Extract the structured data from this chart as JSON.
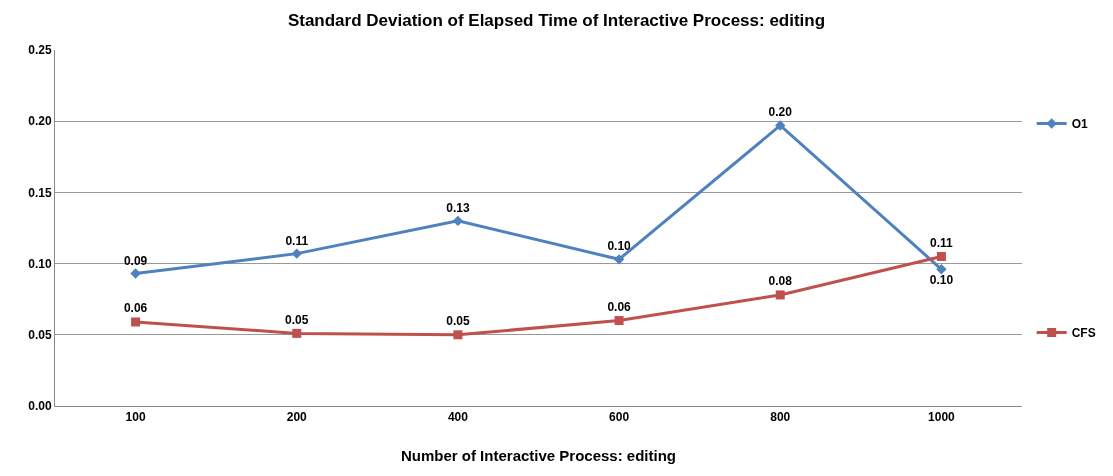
{
  "chart_data": {
    "type": "line",
    "title": "Standard Deviation of Elapsed Time of Interactive Process: editing",
    "xlabel": "Number of Interactive Process: editing",
    "categories": [
      "100",
      "200",
      "400",
      "600",
      "800",
      "1000"
    ],
    "series": [
      {
        "name": "O1",
        "color": "#4f81bd",
        "marker": "diamond",
        "values": [
          0.093,
          0.107,
          0.13,
          0.103,
          0.197,
          0.096
        ],
        "value_labels": [
          "0.09",
          "0.11",
          "0.13",
          "0.10",
          "0.20",
          "0.10"
        ]
      },
      {
        "name": "CFS",
        "color": "#c0504d",
        "marker": "square",
        "values": [
          0.059,
          0.051,
          0.05,
          0.06,
          0.078,
          0.105
        ],
        "value_labels": [
          "0.06",
          "0.05",
          "0.05",
          "0.06",
          "0.08",
          "0.11"
        ]
      }
    ],
    "ylim": [
      0,
      0.25
    ],
    "yticks": [
      {
        "value": 0,
        "label": "0.00"
      },
      {
        "value": 0.05,
        "label": "0.05"
      },
      {
        "value": 0.1,
        "label": "0.10"
      },
      {
        "value": 0.15,
        "label": "0.15"
      },
      {
        "value": 0.2,
        "label": "0.20"
      },
      {
        "value": 0.25,
        "label": "0.25"
      }
    ],
    "grid": "y",
    "legend": "right"
  }
}
